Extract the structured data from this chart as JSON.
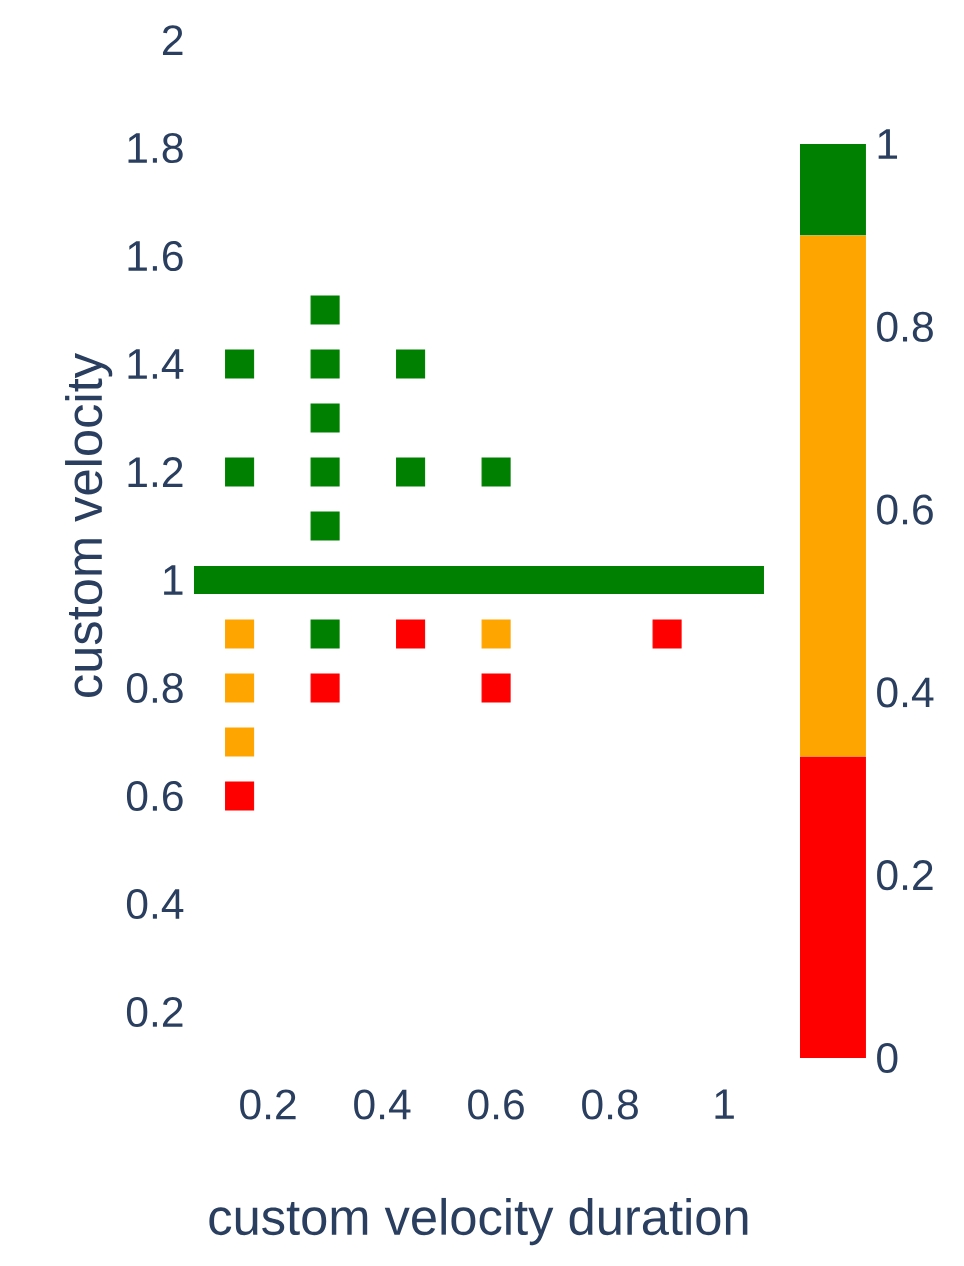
{
  "chart_data": {
    "type": "scatter",
    "xlabel": "custom velocity duration",
    "ylabel": "custom velocity",
    "marker": "square",
    "xlim": [
      0.07,
      1.07
    ],
    "ylim": [
      0.2,
      2
    ],
    "xticks": [
      0.2,
      0.4,
      0.6,
      0.8,
      1
    ],
    "yticks": [
      0.2,
      0.4,
      0.6,
      0.8,
      1,
      1.2,
      1.4,
      1.6,
      1.8,
      2
    ],
    "clim": [
      0,
      1
    ],
    "cticks": [
      0,
      0.2,
      0.4,
      0.6,
      0.8,
      1
    ],
    "ref_lines": [
      {
        "axis": "y",
        "value": 1,
        "color": "#008000"
      }
    ],
    "series": [
      {
        "color": "#ff0000",
        "x": [
          0.15,
          0.3,
          0.45,
          0.6,
          0.9
        ],
        "values": [
          0.6,
          0.8,
          0.9,
          0.8,
          0.9
        ]
      },
      {
        "color": "#ffa500",
        "x": [
          0.15,
          0.15,
          0.15,
          0.6
        ],
        "values": [
          0.9,
          0.8,
          0.7,
          0.9
        ]
      },
      {
        "color": "#008000",
        "x": [
          0.15,
          0.15,
          0.3,
          0.3,
          0.3,
          0.3,
          0.3,
          0.3,
          0.45,
          0.45,
          0.6
        ],
        "values": [
          1.4,
          1.2,
          1.5,
          1.4,
          1.3,
          1.2,
          1.1,
          0.9,
          1.4,
          1.2,
          1.2
        ]
      }
    ]
  }
}
